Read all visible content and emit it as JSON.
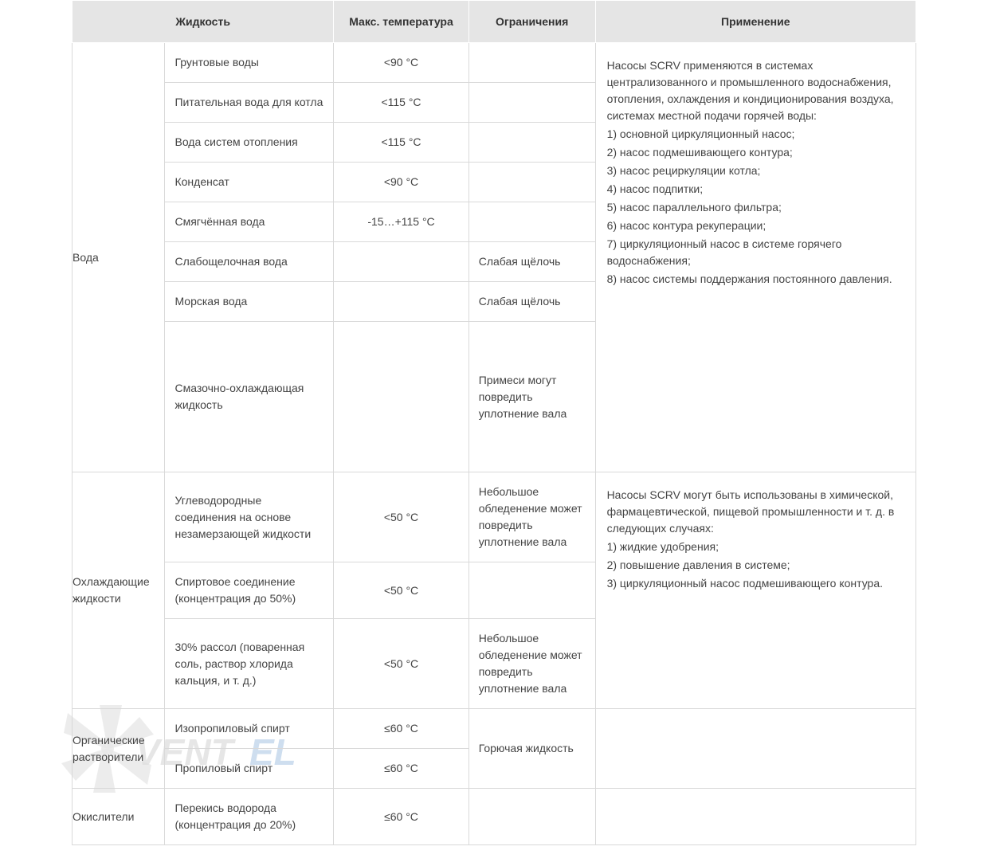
{
  "columns": {
    "liquid": "Жидкость",
    "temp": "Макс. температура",
    "limits": "Ограничения",
    "application": "Применение"
  },
  "groups": [
    {
      "category": "Вода",
      "rows": [
        {
          "liquid": "Грунтовые воды",
          "temp": "<90 °C",
          "limits": ""
        },
        {
          "liquid": "Питательная вода для котла",
          "temp": "<115 °C",
          "limits": ""
        },
        {
          "liquid": "Вода систем отопления",
          "temp": "<115 °C",
          "limits": ""
        },
        {
          "liquid": "Конденсат",
          "temp": "<90 °C",
          "limits": ""
        },
        {
          "liquid": "Смягчённая вода",
          "temp": "-15…+115 °C",
          "limits": ""
        },
        {
          "liquid": "Слабощелочная вода",
          "temp": "",
          "limits": "Слабая щёлочь"
        },
        {
          "liquid": "Морская вода",
          "temp": "",
          "limits": "Слабая щёлочь"
        },
        {
          "liquid": "Смазочно-охлаждающая жидкость",
          "temp": "",
          "limits": "Примеси могут повредить уплотнение вала",
          "tall": true
        }
      ],
      "application": {
        "intro": "Насосы SCRV применяются в системах централизованного и промышленного водоснабжения, отопления, охлаждения и кондиционирования воздуха, системах местной подачи горячей воды:",
        "items": [
          "1) основной циркуляционный насос;",
          "2) насос подмешивающего контура;",
          "3) насос рециркуляции котла;",
          "4) насос подпитки;",
          "5) насос параллельного фильтра;",
          "6) насос контура рекуперации;",
          "7) циркуляционный насос в системе горячего водоснабжения;",
          "8) насос системы поддержания постоянного давления."
        ]
      }
    },
    {
      "category": "Охлаждающие жидкости",
      "rows": [
        {
          "liquid": "Углеводородные соединения на основе незамерзающей жидкости",
          "temp": "<50 °C",
          "limits": "Небольшое обледенение может повредить уплотнение вала"
        },
        {
          "liquid": "Спиртовое соединение (концентрация до 50%)",
          "temp": "<50 °C",
          "limits": ""
        },
        {
          "liquid": "30% рассол (поваренная соль, раствор хлорида кальция, и т. д.)",
          "temp": "<50 °C",
          "limits": "Небольшое обледенение может повредить уплотнение вала"
        }
      ],
      "application": {
        "intro": "Насосы SCRV могут быть использованы в химической, фармацевтической, пищевой промышленности и т. д. в следующих случаях:",
        "items": [
          "1) жидкие удобрения;",
          "2) повышение давления в системе;",
          "3) циркуляционный насос подмешивающего контура."
        ]
      }
    },
    {
      "category": "Органические растворители",
      "rows": [
        {
          "liquid": "Изопропиловый спирт",
          "temp": "≤60 °C",
          "limits_span": "Горючая жидкость"
        },
        {
          "liquid": "Пропиловый спирт",
          "temp": "≤60 °C"
        }
      ],
      "application": {
        "intro": "",
        "items": []
      }
    },
    {
      "category": "Окислители",
      "rows": [
        {
          "liquid": "Перекись водорода (концентрация до 20%)",
          "temp": "≤60 °C",
          "limits": ""
        }
      ],
      "application": {
        "intro": "",
        "items": []
      }
    }
  ],
  "watermark": {
    "text": "VENTEL",
    "fan_color": "#b9b9b9",
    "text_color_dark": "#6b6b6b",
    "text_color_accent": "#3a7bbf"
  }
}
